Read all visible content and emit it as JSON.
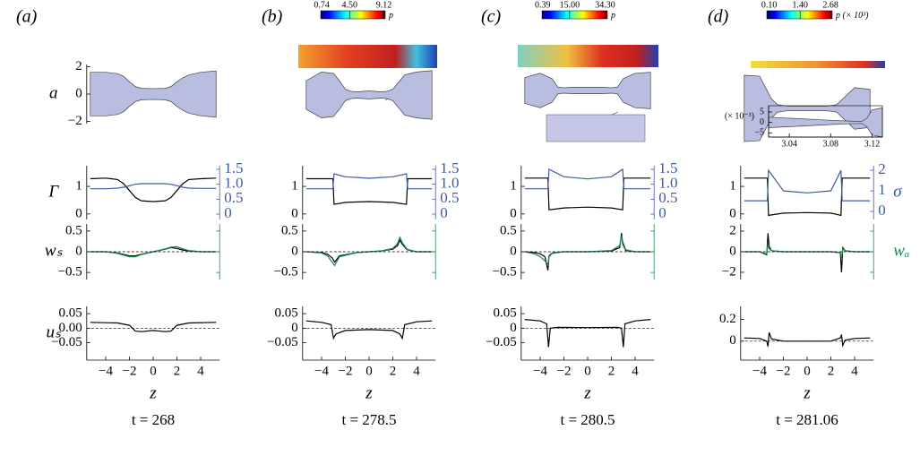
{
  "chart_data": [
    {
      "type": "area",
      "title": "(a)",
      "ylabel": "a",
      "color": "#b9bde0",
      "xlim": [
        -5.6,
        5.6
      ],
      "ylim": [
        -2.17,
        2.17
      ],
      "yticks": [
        2,
        0,
        {
          "value": -2,
          "label": "−2"
        }
      ],
      "x": [
        -5.3,
        -4,
        -3,
        -2.5,
        -2,
        -1.5,
        -1,
        0,
        1,
        1.5,
        2,
        2.5,
        3,
        4,
        5.3
      ],
      "values": [
        1.6,
        1.6,
        1.5,
        1.3,
        0.9,
        0.55,
        0.42,
        0.4,
        0.42,
        0.55,
        0.9,
        1.2,
        1.4,
        1.6,
        1.7
      ]
    },
    {
      "type": "line",
      "ylabel": "Γ",
      "xlim": [
        -5.6,
        5.6
      ],
      "ylim": [
        -0.2,
        1.75
      ],
      "yticks": [
        0,
        1
      ],
      "y2lim": [
        -0.18,
        1.62
      ],
      "y2ticks": [
        0,
        0.5,
        {
          "value": 1,
          "label": "1.0"
        },
        1.5
      ],
      "x": [
        -5.3,
        -4,
        -3,
        -2.5,
        -2,
        -1.5,
        -1,
        0,
        1,
        1.5,
        2,
        2.5,
        3,
        4,
        5.3
      ],
      "series": [
        {
          "color": "#000000",
          "values": [
            1.28,
            1.3,
            1.25,
            1.1,
            0.85,
            0.6,
            0.48,
            0.45,
            0.48,
            0.6,
            0.85,
            1.1,
            1.25,
            1.28,
            1.3
          ]
        },
        {
          "color": "#3e5ba9",
          "axis": "y2",
          "values": [
            0.85,
            0.85,
            0.87,
            0.9,
            0.95,
            1.0,
            1.02,
            1.02,
            1.02,
            1.0,
            0.95,
            0.9,
            0.87,
            0.86,
            0.86
          ]
        }
      ]
    },
    {
      "type": "line",
      "ylabel": "wₛ",
      "xlim": [
        -5.6,
        5.6
      ],
      "ylim": [
        -0.67,
        0.67
      ],
      "yticks": [
        {
          "value": -0.5,
          "label": "−0.5"
        },
        0,
        0.5
      ],
      "zero_line": true,
      "right_axis_color": "#1e8a4c",
      "x": [
        -5.3,
        -4,
        -3,
        -2,
        -1.5,
        -1,
        0,
        1,
        1.5,
        2,
        2.5,
        3,
        4,
        5.3
      ],
      "series": [
        {
          "color": "#000000",
          "values": [
            0,
            0,
            -0.03,
            -0.1,
            -0.1,
            -0.06,
            0,
            0.06,
            0.1,
            0.08,
            0.04,
            0.02,
            0,
            0
          ]
        },
        {
          "color": "#1e8a4c",
          "values": [
            0,
            0,
            -0.04,
            -0.12,
            -0.12,
            -0.07,
            0,
            0.07,
            0.11,
            0.12,
            0.07,
            0.03,
            0,
            0
          ]
        }
      ]
    },
    {
      "type": "line",
      "ylabel": "uₛ",
      "xlabel": "z",
      "caption": "t = 268",
      "xlim": [
        -5.6,
        5.6
      ],
      "ylim": [
        -0.11,
        0.075
      ],
      "yticks": [
        {
          "value": -0.05,
          "label": "−0.05"
        },
        {
          "value": 0,
          "label": "0.00"
        },
        0.05
      ],
      "xticks": [
        {
          "value": -4,
          "label": "−4"
        },
        {
          "value": -2,
          "label": "−2"
        },
        0,
        2,
        4
      ],
      "zero_line": true,
      "x": [
        -5.3,
        -3,
        -2,
        -1.5,
        -1,
        0,
        1,
        1.5,
        2,
        3,
        5.3
      ],
      "series": [
        {
          "color": "#000000",
          "values": [
            0.02,
            0.018,
            0.01,
            -0.01,
            -0.012,
            -0.008,
            -0.012,
            -0.01,
            0.01,
            0.018,
            0.02
          ]
        }
      ]
    },
    {
      "type": "area",
      "title": "(b)",
      "color": "#b9bde0",
      "xlim": [
        -5.6,
        5.6
      ],
      "ylim": [
        -1.75,
        1.75
      ],
      "x": [
        -5.3,
        -4,
        -3,
        -2.5,
        -2,
        -1.5,
        -1,
        0,
        1,
        1.5,
        2,
        2.5,
        3,
        4,
        5.3
      ],
      "values": [
        1.0,
        1.6,
        1.5,
        1.0,
        0.4,
        0.25,
        0.22,
        0.28,
        0.22,
        0.25,
        0.4,
        0.9,
        1.4,
        1.6,
        1.7
      ]
    },
    {
      "type": "line",
      "xlim": [
        -5.6,
        5.6
      ],
      "ylim": [
        -0.2,
        1.75
      ],
      "yticks": [
        0,
        1
      ],
      "y2lim": [
        -0.18,
        1.62
      ],
      "y2ticks": [
        0,
        0.5,
        {
          "value": 1,
          "label": "1.0"
        },
        1.5
      ],
      "x": [
        -5.3,
        -3.05,
        -2.95,
        -2,
        0,
        2,
        3.15,
        3.25,
        5.3
      ],
      "series": [
        {
          "color": "#000000",
          "values": [
            1.28,
            1.28,
            0.35,
            0.42,
            0.45,
            0.42,
            0.35,
            1.28,
            1.28
          ]
        },
        {
          "color": "#3e5ba9",
          "axis": "y2",
          "values": [
            0.85,
            0.85,
            1.35,
            1.25,
            1.2,
            1.25,
            1.35,
            0.85,
            0.85
          ]
        }
      ]
    },
    {
      "type": "line",
      "xlim": [
        -5.6,
        5.6
      ],
      "ylim": [
        -0.67,
        0.67
      ],
      "yticks": [
        {
          "value": -0.5,
          "label": "−0.5"
        },
        0,
        0.5
      ],
      "zero_line": true,
      "right_axis_color": "#1e8a4c",
      "x": [
        -5.3,
        -4,
        -3.5,
        -3.1,
        -2.9,
        -2.5,
        -1,
        0,
        1,
        2,
        2.4,
        2.6,
        2.8,
        3.2,
        4,
        5.3
      ],
      "series": [
        {
          "color": "#000000",
          "values": [
            0,
            -0.02,
            -0.06,
            -0.15,
            -0.25,
            -0.1,
            -0.02,
            0,
            0.02,
            0.06,
            0.15,
            0.28,
            0.18,
            0.05,
            0,
            0
          ]
        },
        {
          "color": "#1e8a4c",
          "values": [
            0,
            -0.03,
            -0.1,
            -0.25,
            -0.33,
            -0.12,
            -0.02,
            0,
            0.02,
            0.08,
            0.2,
            0.35,
            0.22,
            0.06,
            0,
            0
          ]
        }
      ]
    },
    {
      "type": "line",
      "xlabel": "z",
      "caption": "t = 278.5",
      "xlim": [
        -5.6,
        5.6
      ],
      "ylim": [
        -0.11,
        0.075
      ],
      "yticks": [
        {
          "value": -0.05,
          "label": "−0.05"
        },
        0,
        0.05
      ],
      "xticks": [
        {
          "value": -4,
          "label": "−4"
        },
        {
          "value": -2,
          "label": "−2"
        },
        0,
        2,
        4
      ],
      "zero_line": true,
      "x": [
        -5.3,
        -4,
        -3.2,
        -3.0,
        -2.8,
        -2,
        0,
        2,
        2.6,
        2.8,
        3.0,
        4,
        5.3
      ],
      "series": [
        {
          "color": "#000000",
          "values": [
            0.025,
            0.02,
            0.012,
            -0.035,
            -0.02,
            -0.008,
            -0.005,
            -0.008,
            -0.02,
            -0.035,
            0.012,
            0.022,
            0.025
          ]
        }
      ]
    },
    {
      "type": "area",
      "title": "(c)",
      "color": "#b9bde0",
      "xlim": [
        -5.6,
        5.6
      ],
      "ylim": [
        -1.75,
        1.75
      ],
      "x": [
        -5.3,
        -4,
        -3,
        -2.5,
        -2,
        -1.5,
        -1,
        0,
        1,
        1.5,
        2,
        2.5,
        3,
        4,
        5.3
      ],
      "values": [
        1.2,
        1.6,
        1.1,
        0.3,
        0.25,
        0.28,
        0.3,
        0.3,
        0.3,
        0.28,
        0.25,
        0.3,
        1.1,
        1.6,
        1.7
      ]
    },
    {
      "type": "line",
      "xlim": [
        -5.6,
        5.6
      ],
      "ylim": [
        -0.2,
        1.75
      ],
      "yticks": [
        0,
        1
      ],
      "y2lim": [
        -0.18,
        1.62
      ],
      "y2ticks": [
        0,
        0.5,
        {
          "value": 1,
          "label": "1.0"
        },
        1.5
      ],
      "x": [
        -5.3,
        -3.35,
        -3.25,
        -2,
        0,
        2,
        2.95,
        3.05,
        5.3
      ],
      "series": [
        {
          "color": "#000000",
          "values": [
            1.3,
            1.3,
            0.15,
            0.22,
            0.25,
            0.22,
            0.15,
            1.3,
            1.3
          ]
        },
        {
          "color": "#3e5ba9",
          "axis": "y2",
          "values": [
            0.85,
            0.85,
            1.5,
            1.25,
            1.18,
            1.25,
            1.5,
            0.85,
            0.85
          ]
        }
      ]
    },
    {
      "type": "line",
      "xlim": [
        -5.6,
        5.6
      ],
      "ylim": [
        -0.67,
        0.67
      ],
      "yticks": [
        {
          "value": -0.5,
          "label": "−0.5"
        },
        0,
        0.5
      ],
      "zero_line": true,
      "right_axis_color": "#1e8a4c",
      "x": [
        -5.3,
        -4.5,
        -4,
        -3.6,
        -3.35,
        -3.25,
        -3,
        -2,
        0,
        2,
        2.7,
        2.85,
        2.95,
        3.2,
        4,
        5.3
      ],
      "series": [
        {
          "color": "#000000",
          "values": [
            0,
            -0.02,
            -0.05,
            -0.12,
            -0.45,
            -0.1,
            -0.03,
            0,
            0,
            0.02,
            0.1,
            0.45,
            0.2,
            0.03,
            0,
            0
          ]
        },
        {
          "color": "#1e8a4c",
          "values": [
            0,
            -0.05,
            -0.12,
            -0.22,
            -0.3,
            -0.12,
            -0.04,
            0,
            0,
            0.03,
            0.15,
            0.38,
            0.25,
            0.05,
            0,
            0
          ]
        }
      ]
    },
    {
      "type": "line",
      "xlabel": "z",
      "caption": "t = 280.5",
      "xlim": [
        -5.6,
        5.6
      ],
      "ylim": [
        -0.11,
        0.075
      ],
      "yticks": [
        {
          "value": -0.05,
          "label": "−0.05"
        },
        0,
        0.05
      ],
      "xticks": [
        {
          "value": -4,
          "label": "−4"
        },
        {
          "value": -2,
          "label": "−2"
        },
        0,
        2,
        4
      ],
      "zero_line": true,
      "x": [
        -5.3,
        -4,
        -3.45,
        -3.3,
        -3.15,
        -2.5,
        0,
        2.5,
        2.85,
        3.0,
        3.15,
        4,
        5.3
      ],
      "series": [
        {
          "color": "#000000",
          "values": [
            0.03,
            0.025,
            0.015,
            -0.065,
            0,
            0.003,
            0.002,
            0.003,
            0,
            -0.065,
            0.015,
            0.025,
            0.03
          ]
        }
      ]
    },
    {
      "type": "area",
      "title": "(d)",
      "color": "#b9bde0",
      "xlim": [
        -5.6,
        5.6
      ],
      "ylim": [
        -1.75,
        1.75
      ],
      "x": [
        -5.3,
        -4,
        -3,
        -2.5,
        -2,
        -1.5,
        -1,
        0,
        1,
        1.5,
        2,
        2.5,
        3,
        4,
        5.3
      ],
      "values": [
        1.75,
        1.7,
        0.5,
        0.2,
        0.15,
        0.12,
        0.12,
        0.12,
        0.12,
        0.12,
        0.15,
        0.2,
        0.5,
        1.1,
        1.0
      ]
    },
    {
      "type": "line",
      "y2label": "σ",
      "xlim": [
        -5.6,
        5.6
      ],
      "ylim": [
        -0.2,
        1.75
      ],
      "yticks": [
        0,
        1
      ],
      "y2lim": [
        -0.39,
        2.22
      ],
      "y2ticks": [
        0,
        1,
        2
      ],
      "x": [
        -5.3,
        -3.35,
        -3.25,
        -2,
        0,
        2,
        2.85,
        2.95,
        5.3
      ],
      "series": [
        {
          "color": "#000000",
          "values": [
            1.3,
            1.3,
            -0.05,
            0.03,
            0.05,
            0.03,
            -0.05,
            1.3,
            1.3
          ]
        },
        {
          "color": "#3e5ba9",
          "axis": "y2",
          "values": [
            0.52,
            0.52,
            2.0,
            1.0,
            0.9,
            1.0,
            2.0,
            0.52,
            0.52
          ]
        }
      ]
    },
    {
      "type": "line",
      "y2label": "wₐ",
      "xlim": [
        -5.6,
        5.6
      ],
      "ylim": [
        -2.7,
        2.7
      ],
      "yticks": [
        {
          "value": -2,
          "label": "−2"
        },
        0,
        2
      ],
      "zero_line": true,
      "right_axis_color": "#1e8a4c",
      "x": [
        -5.3,
        -4,
        -3.4,
        -3.3,
        -3.2,
        -3,
        -2,
        0,
        2,
        2.8,
        2.9,
        3.0,
        3.2,
        4,
        5.3
      ],
      "series": [
        {
          "color": "#000000",
          "values": [
            0,
            0,
            -0.3,
            1.8,
            0.5,
            0.1,
            0,
            0,
            0,
            -0.1,
            -2.0,
            0.4,
            0.1,
            0,
            0
          ]
        },
        {
          "color": "#1e8a4c",
          "values": [
            0,
            0,
            -0.2,
            0.8,
            0.3,
            0.1,
            0,
            0,
            0,
            -0.1,
            -0.6,
            0.3,
            0.1,
            0,
            0
          ]
        }
      ]
    },
    {
      "type": "line",
      "xlabel": "z",
      "caption": "t = 281.06",
      "xlim": [
        -5.6,
        5.6
      ],
      "ylim": [
        -0.175,
        0.32
      ],
      "yticks": [
        0,
        0.2
      ],
      "xticks": [
        {
          "value": -4,
          "label": "−4"
        },
        {
          "value": -2,
          "label": "−2"
        },
        0,
        2,
        4
      ],
      "zero_line": true,
      "x": [
        -5.3,
        -4,
        -3.4,
        -3.3,
        -3.2,
        -3,
        -2,
        0,
        2,
        2.8,
        2.9,
        3.0,
        3.2,
        4,
        5.3
      ],
      "series": [
        {
          "color": "#000000",
          "values": [
            0.03,
            0.025,
            0.0,
            -0.05,
            0.08,
            0.02,
            0.0,
            0,
            0,
            0.03,
            0.06,
            -0.04,
            0.01,
            0.025,
            0.03
          ]
        }
      ]
    },
    {
      "type": "colorbar",
      "label": "p",
      "xlim": [
        0.6,
        9.3
      ],
      "xticks": [
        0.74,
        {
          "value": 4.5,
          "label": "4.50"
        },
        9.12
      ],
      "colors": [
        "#00007f",
        "#0000ff",
        "#007fff",
        "#00ffff",
        "#7fff7f",
        "#ffff00",
        "#ff7f00",
        "#ff0000",
        "#7f0000"
      ]
    },
    {
      "type": "colorbar",
      "label": "p",
      "xlim": [
        0,
        35.5
      ],
      "xticks": [
        0.39,
        {
          "value": 15,
          "label": "15.00"
        },
        {
          "value": 34.3,
          "label": "34.30"
        }
      ],
      "colors": [
        "#00007f",
        "#0000ff",
        "#007fff",
        "#00ffff",
        "#7fff7f",
        "#ffff00",
        "#ff7f00",
        "#ff0000",
        "#7f0000"
      ]
    },
    {
      "type": "colorbar",
      "label": "p (× 10³)",
      "xlim": [
        0,
        2.75
      ],
      "xticks": [
        {
          "value": 0.1,
          "label": "0.10"
        },
        {
          "value": 1.4,
          "label": "1.40"
        },
        2.68
      ],
      "colors": [
        "#00007f",
        "#0000ff",
        "#007fff",
        "#00ffff",
        "#7fff7f",
        "#ffff00",
        "#ff7f00",
        "#ff0000",
        "#7f0000"
      ]
    },
    {
      "type": "area",
      "ylabel": "(× 10⁻³)",
      "color": "#b9bde0",
      "xlim": [
        3.02,
        3.13
      ],
      "ylim": [
        -7,
        8
      ],
      "xticks": [
        3.04,
        3.08,
        3.12
      ],
      "yticks": [
        {
          "value": -5,
          "label": "−5"
        },
        0,
        5
      ],
      "x": [
        3.02,
        3.05,
        3.08,
        3.1,
        3.11,
        3.115,
        3.12,
        3.13
      ],
      "values": [
        2.5,
        1.8,
        1.0,
        0.6,
        0.5,
        2,
        6,
        7
      ]
    }
  ]
}
